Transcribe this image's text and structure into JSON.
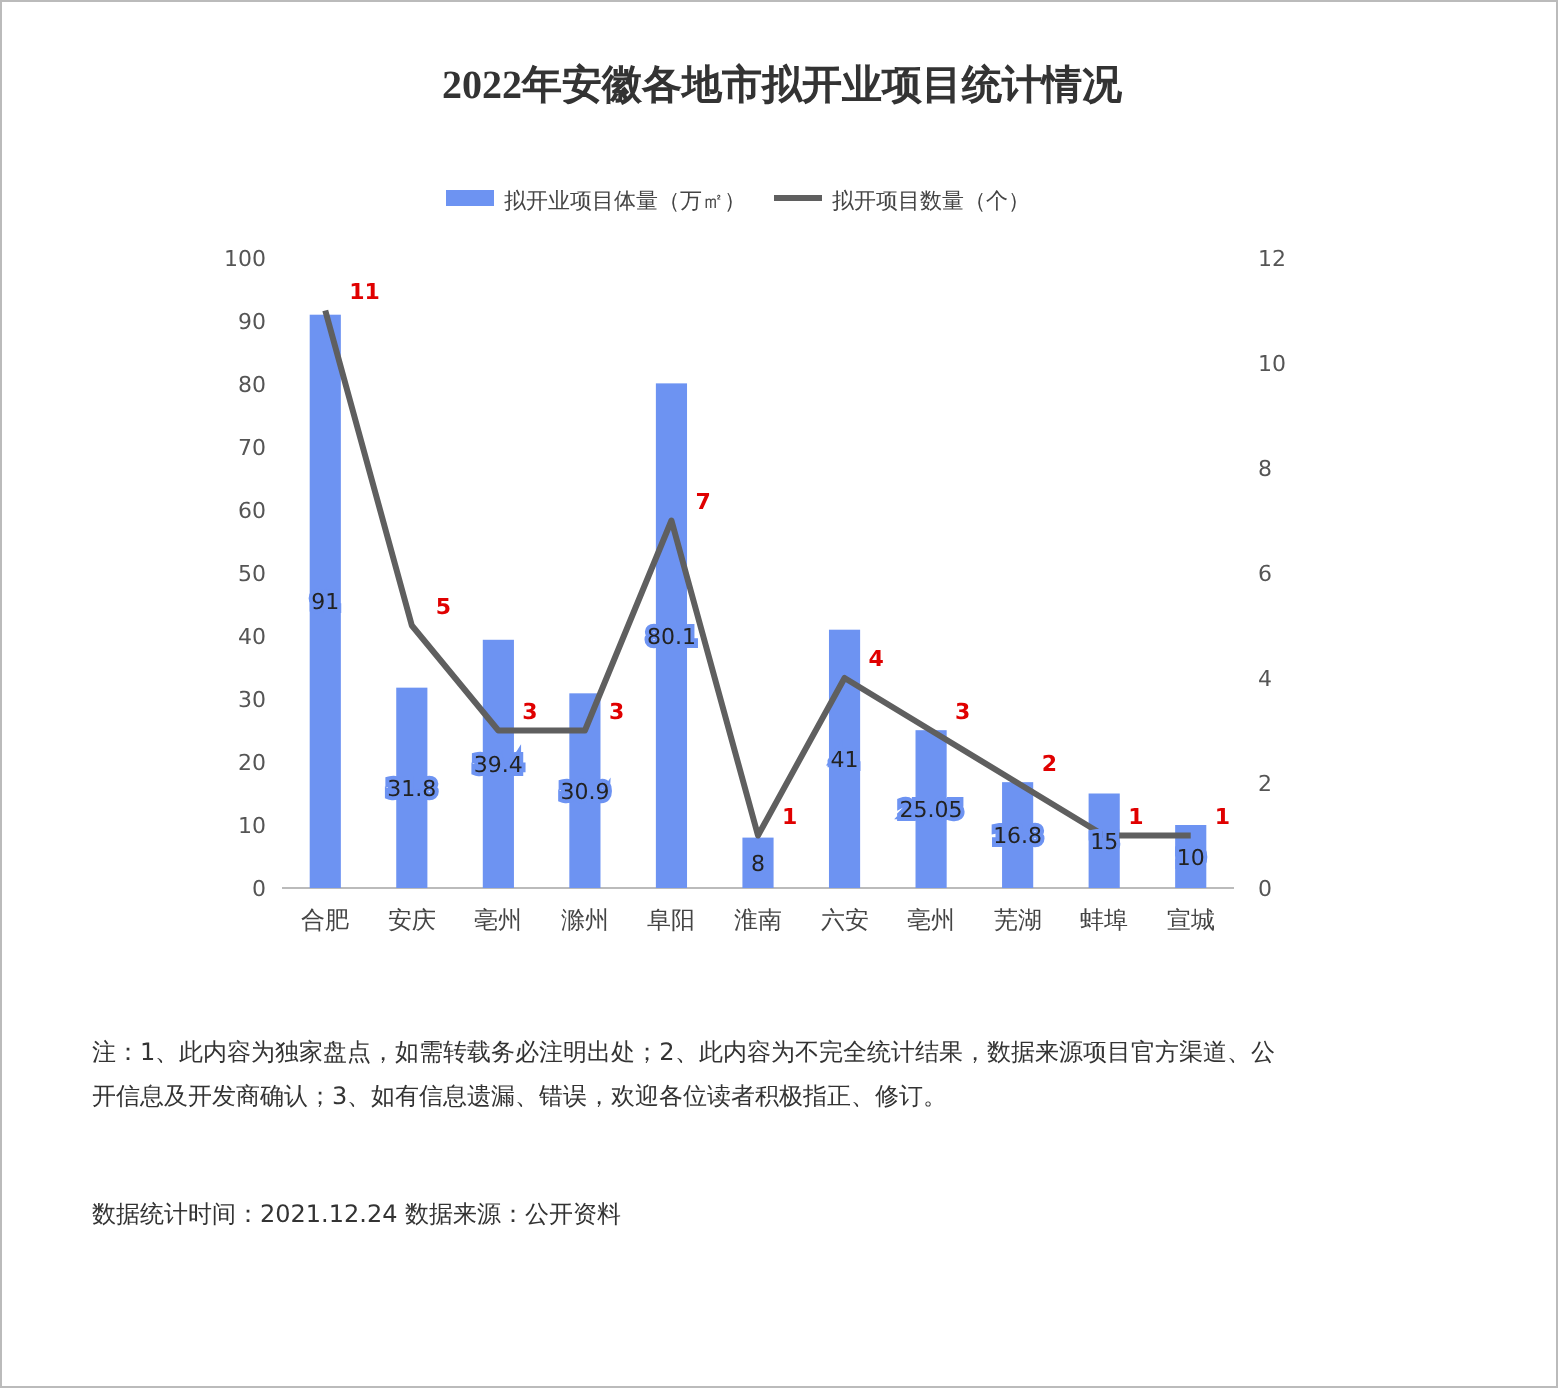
{
  "chart_data": {
    "type": "bar",
    "title": "2022年安徽各地市拟开业项目统计情况",
    "categories": [
      "合肥",
      "安庆",
      "亳州",
      "滁州",
      "阜阳",
      "淮南",
      "六安",
      "亳州",
      "芜湖",
      "蚌埠",
      "宣城"
    ],
    "series": [
      {
        "name": "拟开业项目体量（万㎡）",
        "color": "#6d93f2",
        "values": [
          91,
          31.8,
          39.4,
          30.9,
          80.1,
          8,
          41,
          25.05,
          16.8,
          15,
          10
        ]
      },
      {
        "name": "拟开项目数量（个）",
        "type": "line",
        "axis": "y2",
        "color": "#5f5f5f",
        "values": [
          11,
          5,
          3,
          3,
          7,
          1,
          4,
          3,
          2,
          1,
          1
        ]
      }
    ],
    "ylim": [
      0,
      100
    ],
    "yticks": [
      0,
      10,
      20,
      30,
      40,
      50,
      60,
      70,
      80,
      90,
      100
    ],
    "y2lim": [
      0,
      12
    ],
    "y2ticks": [
      0,
      2,
      4,
      6,
      8,
      10,
      12
    ],
    "legend": "top",
    "data_labels": true,
    "grid": false,
    "marker": "none",
    "line_style": "solid",
    "annotations": [
      "注：1、此内容为独家盘点，如需转载务必注明出处；2、此内容为不完全统计结果，数据来源项目官方渠道、公开信息及开发商确认；3、如有信息遗漏、错误，欢迎各位读者积极指正、修订。",
      "数据统计时间：2021.12.24 数据来源：公开资料"
    ]
  }
}
